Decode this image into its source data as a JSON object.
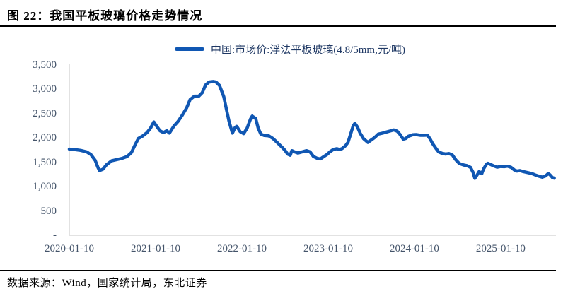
{
  "title": "图 22：我国平板玻璃价格走势情况",
  "legend": {
    "label": "中国:市场价:浮法平板玻璃(4.8/5mm,元/吨)"
  },
  "footer": {
    "source": "数据来源：Wind，国家统计局，东北证券"
  },
  "colors": {
    "line": "#1057b3",
    "axis": "#d9d9d9",
    "tick_text": "#44546a",
    "legend_text": "#1f3864",
    "rule": "#000000"
  },
  "chart_data": {
    "type": "line",
    "title": "我国平板玻璃价格走势情况",
    "x_unit": "years since 2020-01-10",
    "y_unit": "元/吨",
    "grid": false,
    "legend_position": "top-center",
    "xlim": [
      0,
      5.64
    ],
    "ylim": [
      0,
      3500
    ],
    "x_ticks": [
      {
        "t": 0,
        "label": "2020-01-10"
      },
      {
        "t": 1,
        "label": "2021-01-10"
      },
      {
        "t": 2,
        "label": "2022-01-10"
      },
      {
        "t": 3,
        "label": "2023-01-10"
      },
      {
        "t": 4,
        "label": "2024-01-10"
      },
      {
        "t": 5,
        "label": "2025-01-10"
      }
    ],
    "y_ticks": [
      {
        "v": 0,
        "label": "-"
      },
      {
        "v": 500,
        "label": "500"
      },
      {
        "v": 1000,
        "label": "1,000"
      },
      {
        "v": 1500,
        "label": "1,500"
      },
      {
        "v": 2000,
        "label": "2,000"
      },
      {
        "v": 2500,
        "label": "2,500"
      },
      {
        "v": 3000,
        "label": "3,000"
      },
      {
        "v": 3500,
        "label": "3,500"
      }
    ],
    "series": [
      {
        "name": "中国:市场价:浮法平板玻璃(4.8/5mm,元/吨)",
        "points": [
          [
            0,
            1770
          ],
          [
            0.07,
            1760
          ],
          [
            0.13,
            1745
          ],
          [
            0.2,
            1715
          ],
          [
            0.25,
            1660
          ],
          [
            0.3,
            1540
          ],
          [
            0.33,
            1400
          ],
          [
            0.35,
            1330
          ],
          [
            0.39,
            1360
          ],
          [
            0.43,
            1450
          ],
          [
            0.49,
            1530
          ],
          [
            0.56,
            1560
          ],
          [
            0.61,
            1580
          ],
          [
            0.67,
            1620
          ],
          [
            0.72,
            1700
          ],
          [
            0.76,
            1850
          ],
          [
            0.8,
            1990
          ],
          [
            0.85,
            2040
          ],
          [
            0.9,
            2110
          ],
          [
            0.94,
            2200
          ],
          [
            0.98,
            2330
          ],
          [
            1.01,
            2250
          ],
          [
            1.05,
            2150
          ],
          [
            1.09,
            2110
          ],
          [
            1.13,
            2150
          ],
          [
            1.16,
            2100
          ],
          [
            1.21,
            2240
          ],
          [
            1.26,
            2340
          ],
          [
            1.31,
            2470
          ],
          [
            1.36,
            2620
          ],
          [
            1.4,
            2790
          ],
          [
            1.45,
            2860
          ],
          [
            1.5,
            2860
          ],
          [
            1.54,
            2930
          ],
          [
            1.58,
            3090
          ],
          [
            1.62,
            3150
          ],
          [
            1.67,
            3160
          ],
          [
            1.7,
            3150
          ],
          [
            1.74,
            3080
          ],
          [
            1.76,
            2990
          ],
          [
            1.79,
            2850
          ],
          [
            1.82,
            2600
          ],
          [
            1.85,
            2350
          ],
          [
            1.89,
            2100
          ],
          [
            1.92,
            2210
          ],
          [
            1.94,
            2240
          ],
          [
            1.98,
            2130
          ],
          [
            2.02,
            2090
          ],
          [
            2.06,
            2200
          ],
          [
            2.1,
            2390
          ],
          [
            2.12,
            2450
          ],
          [
            2.16,
            2400
          ],
          [
            2.19,
            2200
          ],
          [
            2.22,
            2080
          ],
          [
            2.26,
            2050
          ],
          [
            2.31,
            2045
          ],
          [
            2.36,
            1990
          ],
          [
            2.41,
            1905
          ],
          [
            2.46,
            1820
          ],
          [
            2.5,
            1745
          ],
          [
            2.53,
            1670
          ],
          [
            2.56,
            1645
          ],
          [
            2.58,
            1740
          ],
          [
            2.61,
            1715
          ],
          [
            2.65,
            1690
          ],
          [
            2.68,
            1705
          ],
          [
            2.71,
            1720
          ],
          [
            2.75,
            1740
          ],
          [
            2.79,
            1715
          ],
          [
            2.83,
            1620
          ],
          [
            2.87,
            1585
          ],
          [
            2.91,
            1570
          ],
          [
            2.95,
            1620
          ],
          [
            2.99,
            1665
          ],
          [
            3.02,
            1715
          ],
          [
            3.06,
            1765
          ],
          [
            3.1,
            1780
          ],
          [
            3.13,
            1765
          ],
          [
            3.16,
            1780
          ],
          [
            3.2,
            1840
          ],
          [
            3.23,
            1910
          ],
          [
            3.26,
            2080
          ],
          [
            3.29,
            2250
          ],
          [
            3.31,
            2300
          ],
          [
            3.34,
            2225
          ],
          [
            3.37,
            2100
          ],
          [
            3.41,
            1985
          ],
          [
            3.46,
            1910
          ],
          [
            3.5,
            1960
          ],
          [
            3.54,
            2010
          ],
          [
            3.58,
            2080
          ],
          [
            3.63,
            2100
          ],
          [
            3.68,
            2125
          ],
          [
            3.73,
            2150
          ],
          [
            3.76,
            2165
          ],
          [
            3.8,
            2140
          ],
          [
            3.83,
            2080
          ],
          [
            3.87,
            1975
          ],
          [
            3.9,
            1990
          ],
          [
            3.93,
            2035
          ],
          [
            3.98,
            2065
          ],
          [
            4.02,
            2070
          ],
          [
            4.07,
            2055
          ],
          [
            4.11,
            2055
          ],
          [
            4.15,
            2060
          ],
          [
            4.18,
            1985
          ],
          [
            4.21,
            1885
          ],
          [
            4.25,
            1785
          ],
          [
            4.28,
            1715
          ],
          [
            4.32,
            1685
          ],
          [
            4.36,
            1670
          ],
          [
            4.4,
            1680
          ],
          [
            4.44,
            1650
          ],
          [
            4.48,
            1550
          ],
          [
            4.52,
            1475
          ],
          [
            4.57,
            1445
          ],
          [
            4.61,
            1430
          ],
          [
            4.65,
            1395
          ],
          [
            4.68,
            1290
          ],
          [
            4.7,
            1170
          ],
          [
            4.73,
            1250
          ],
          [
            4.75,
            1310
          ],
          [
            4.78,
            1265
          ],
          [
            4.8,
            1360
          ],
          [
            4.83,
            1450
          ],
          [
            4.85,
            1480
          ],
          [
            4.89,
            1450
          ],
          [
            4.92,
            1425
          ],
          [
            4.96,
            1400
          ],
          [
            5,
            1415
          ],
          [
            5.04,
            1410
          ],
          [
            5.08,
            1420
          ],
          [
            5.12,
            1395
          ],
          [
            5.16,
            1340
          ],
          [
            5.19,
            1320
          ],
          [
            5.22,
            1330
          ],
          [
            5.26,
            1310
          ],
          [
            5.31,
            1290
          ],
          [
            5.36,
            1270
          ],
          [
            5.4,
            1240
          ],
          [
            5.44,
            1215
          ],
          [
            5.48,
            1195
          ],
          [
            5.52,
            1220
          ],
          [
            5.55,
            1270
          ],
          [
            5.57,
            1245
          ],
          [
            5.6,
            1185
          ],
          [
            5.62,
            1175
          ]
        ]
      }
    ]
  }
}
